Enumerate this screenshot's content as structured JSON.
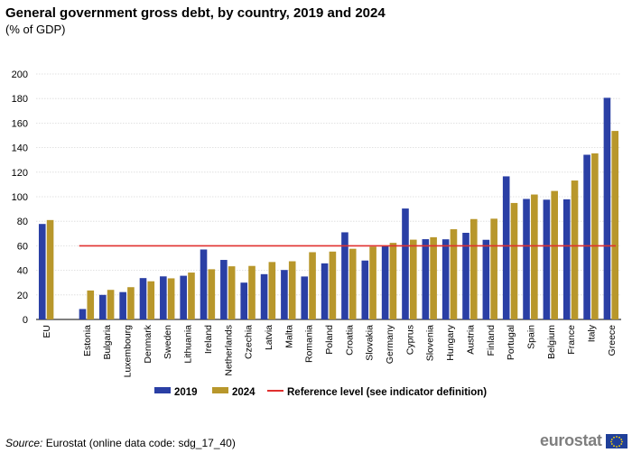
{
  "header": {
    "title": "General government gross debt, by country, 2019 and 2024",
    "subtitle": "(% of GDP)"
  },
  "chart_data": {
    "type": "bar",
    "title": "General government gross debt, by country, 2019 and 2024",
    "subtitle": "(% of GDP)",
    "xlabel": "",
    "ylabel": "",
    "ylim": [
      0,
      200
    ],
    "yticks": [
      0,
      20,
      40,
      60,
      80,
      100,
      120,
      140,
      160,
      180,
      200
    ],
    "grid": true,
    "legend_position": "bottom",
    "categories": [
      "EU",
      "",
      "Estonia",
      "Bulgaria",
      "Luxembourg",
      "Denmark",
      "Sweden",
      "Lithuania",
      "Ireland",
      "Netherlands",
      "Czechia",
      "Latvia",
      "Malta",
      "Romania",
      "Poland",
      "Croatia",
      "Slovakia",
      "Germany",
      "Cyprus",
      "Slovenia",
      "Hungary",
      "Austria",
      "Finland",
      "Portugal",
      "Spain",
      "Belgium",
      "France",
      "Italy",
      "Greece"
    ],
    "series": [
      {
        "name": "2019",
        "color": "#2A3FA5",
        "values": [
          77.8,
          null,
          8.5,
          20.0,
          22.3,
          33.7,
          35.1,
          35.6,
          57.0,
          48.5,
          30.0,
          36.9,
          40.3,
          35.0,
          45.7,
          71.0,
          48.0,
          59.6,
          90.4,
          65.4,
          65.3,
          70.6,
          64.9,
          116.6,
          98.2,
          97.6,
          97.9,
          134.2,
          180.6
        ]
      },
      {
        "name": "2024",
        "color": "#B8972B",
        "values": [
          81.0,
          null,
          23.6,
          24.1,
          26.3,
          31.1,
          33.5,
          38.2,
          40.9,
          43.3,
          43.6,
          46.8,
          47.4,
          54.8,
          55.3,
          57.6,
          59.3,
          62.4,
          65.0,
          67.0,
          73.5,
          81.8,
          82.1,
          94.9,
          101.8,
          104.7,
          113.2,
          135.3,
          153.6
        ]
      }
    ],
    "reference_line": {
      "name": "Reference level (see indicator definition)",
      "value": 60,
      "color": "#E0302F"
    }
  },
  "footer": {
    "source_label": "Source:",
    "source_text": " Eurostat (online data code: sdg_17_40)",
    "logo_text": "eurostat"
  }
}
